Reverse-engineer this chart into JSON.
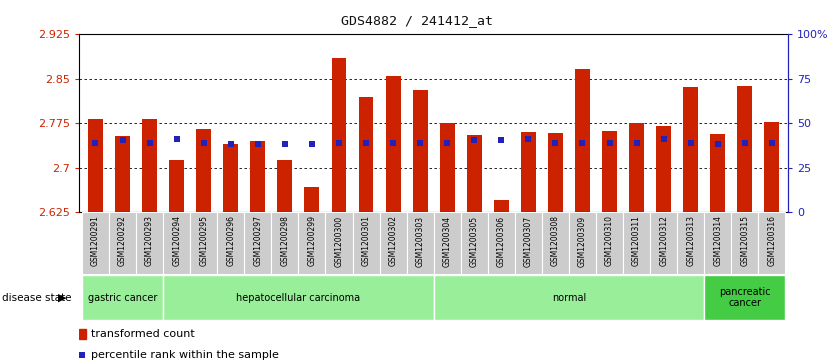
{
  "title": "GDS4882 / 241412_at",
  "samples": [
    "GSM1200291",
    "GSM1200292",
    "GSM1200293",
    "GSM1200294",
    "GSM1200295",
    "GSM1200296",
    "GSM1200297",
    "GSM1200298",
    "GSM1200299",
    "GSM1200300",
    "GSM1200301",
    "GSM1200302",
    "GSM1200303",
    "GSM1200304",
    "GSM1200305",
    "GSM1200306",
    "GSM1200307",
    "GSM1200308",
    "GSM1200309",
    "GSM1200310",
    "GSM1200311",
    "GSM1200312",
    "GSM1200313",
    "GSM1200314",
    "GSM1200315",
    "GSM1200316"
  ],
  "bar_values": [
    2.782,
    2.753,
    2.782,
    2.713,
    2.766,
    2.74,
    2.745,
    2.713,
    2.668,
    2.885,
    2.82,
    2.855,
    2.832,
    2.775,
    2.755,
    2.645,
    2.76,
    2.758,
    2.866,
    2.763,
    2.775,
    2.771,
    2.836,
    2.757,
    2.838,
    2.778
  ],
  "blue_values": [
    2.742,
    2.747,
    2.742,
    2.748,
    2.742,
    2.74,
    2.74,
    2.74,
    2.741,
    2.742,
    2.742,
    2.742,
    2.742,
    2.742,
    2.747,
    2.747,
    2.748,
    2.742,
    2.742,
    2.742,
    2.742,
    2.748,
    2.742,
    2.74,
    2.742,
    2.742
  ],
  "ymin": 2.625,
  "ymax": 2.925,
  "ytick_positions": [
    2.625,
    2.7,
    2.775,
    2.85,
    2.925
  ],
  "ytick_labels": [
    "2.625",
    "2.7",
    "2.775",
    "2.85",
    "2.925"
  ],
  "right_ytick_positions": [
    0,
    25,
    50,
    75,
    100
  ],
  "right_ytick_labels": [
    "0",
    "25",
    "50",
    "75",
    "100%"
  ],
  "bar_color": "#CC2200",
  "blue_color": "#2222BB",
  "grid_yticks": [
    2.7,
    2.775,
    2.85
  ],
  "left_tick_color": "#CC2200",
  "right_tick_color": "#2222BB",
  "title_color": "#111111",
  "disease_groups": [
    {
      "label": "gastric cancer",
      "start": 0,
      "end": 3,
      "light": true
    },
    {
      "label": "hepatocellular carcinoma",
      "start": 3,
      "end": 13,
      "light": true
    },
    {
      "label": "normal",
      "start": 13,
      "end": 23,
      "light": true
    },
    {
      "label": "pancreatic\ncancer",
      "start": 23,
      "end": 26,
      "light": false
    }
  ],
  "group_color_light": "#99EE99",
  "group_color_dark": "#44CC44",
  "xtick_bg": "#CCCCCC",
  "plot_bg": "#FFFFFF"
}
